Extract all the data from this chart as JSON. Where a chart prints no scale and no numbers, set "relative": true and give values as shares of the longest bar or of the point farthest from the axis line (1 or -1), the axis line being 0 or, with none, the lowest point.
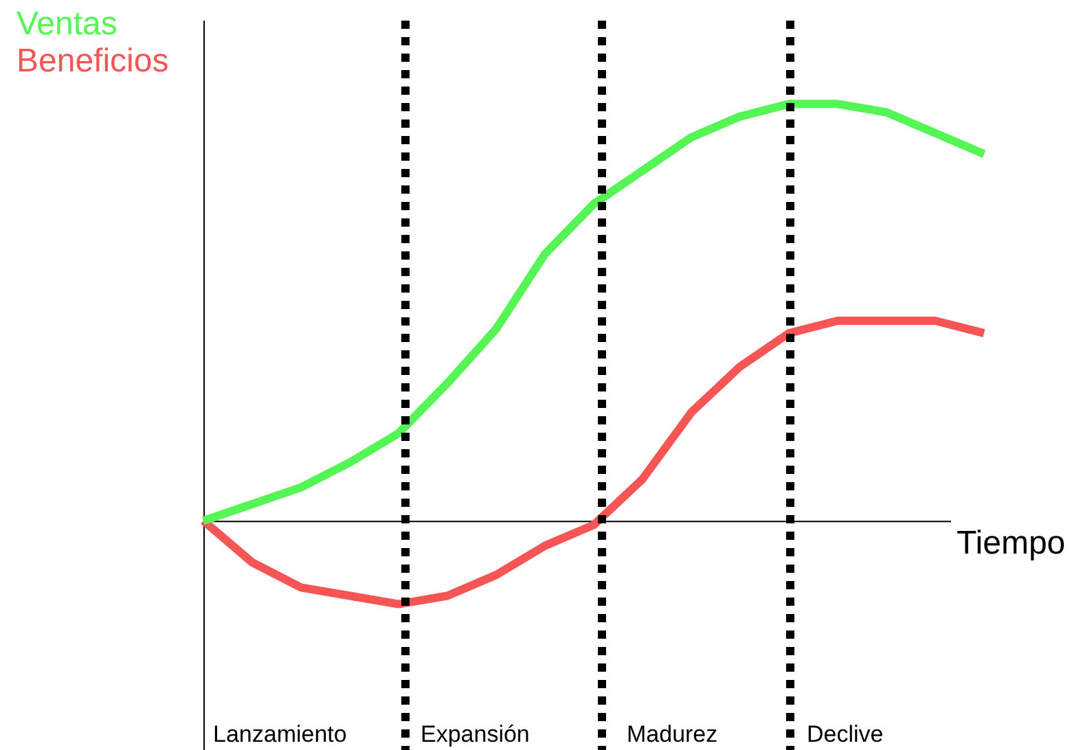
{
  "chart_data": {
    "type": "line",
    "relative": true,
    "xlabel": "Tiempo",
    "marker": "none",
    "line_style": "solid",
    "categories": [
      null,
      null,
      null,
      null,
      null,
      null,
      null,
      null,
      null,
      null,
      null,
      null,
      null,
      null,
      null,
      null,
      null
    ],
    "series": [
      {
        "name": "Ventas",
        "color": "#55f555",
        "values": [
          0,
          0.04,
          0.08,
          0.14,
          0.21,
          0.33,
          0.46,
          0.64,
          0.76,
          0.84,
          0.92,
          0.97,
          1.0,
          1.0,
          0.98,
          0.93,
          0.88
        ]
      },
      {
        "name": "Beneficios",
        "color": "#f55555",
        "values": [
          0,
          -0.1,
          -0.16,
          -0.18,
          -0.2,
          -0.18,
          -0.13,
          -0.06,
          -0.01,
          0.1,
          0.26,
          0.37,
          0.45,
          0.48,
          0.48,
          0.48,
          0.45
        ]
      }
    ],
    "annotations": [
      "Lanzamiento",
      "Expansión",
      "Madurez",
      "Declive"
    ]
  }
}
